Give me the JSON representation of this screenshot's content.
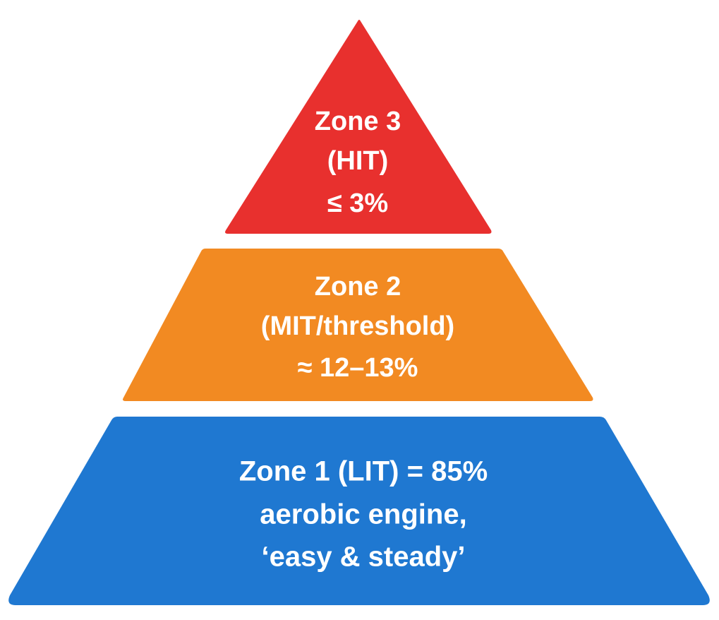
{
  "tiers": [
    {
      "lines": [
        "Zone 3",
        "(HIT)",
        "≤ 3%"
      ]
    },
    {
      "lines": [
        "Zone 2",
        "(MIT/threshold)",
        "≈ 12–13%"
      ]
    },
    {
      "lines": [
        "Zone 1 (LIT) = 85%",
        "aerobic engine,",
        "‘easy & steady’"
      ]
    }
  ]
}
